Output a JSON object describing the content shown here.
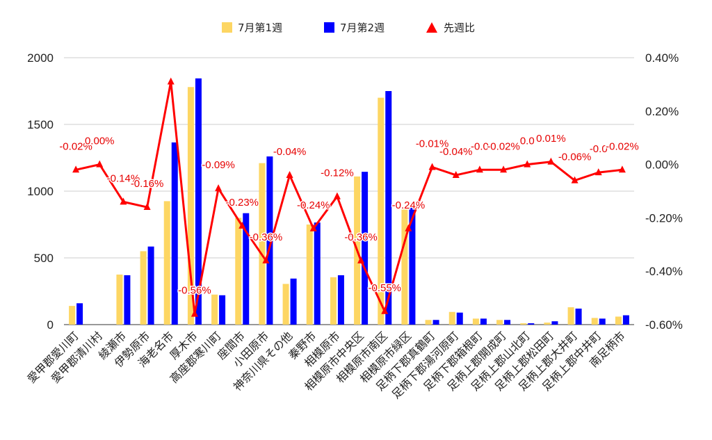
{
  "chart_data": {
    "type": "bar",
    "categories": [
      "愛甲郡愛川町",
      "愛甲郡清川村",
      "綾瀬市",
      "伊勢原市",
      "海老名市",
      "厚木市",
      "高座郡寒川町",
      "座間市",
      "小田原市",
      "神奈川県その他",
      "秦野市",
      "相模原市",
      "相模原市中央区",
      "相模原市南区",
      "相模原市緑区",
      "足柄下郡真鶴町",
      "足柄下郡湯河原町",
      "足柄下郡箱根町",
      "足柄上郡開成町",
      "足柄上郡山北町",
      "足柄上郡松田町",
      "足柄上郡大井町",
      "足柄上郡中井町",
      "南足柄市"
    ],
    "series": [
      {
        "name": "7月第1週",
        "axis": "left",
        "color": "#fdd663",
        "values": [
          140,
          0,
          375,
          550,
          925,
          1780,
          225,
          800,
          1210,
          305,
          750,
          355,
          1110,
          1700,
          870,
          35,
          95,
          45,
          35,
          10,
          15,
          130,
          50,
          60
        ]
      },
      {
        "name": "7月第2週",
        "axis": "left",
        "color": "#0000ff",
        "values": [
          160,
          0,
          370,
          585,
          1365,
          1845,
          220,
          835,
          1260,
          345,
          765,
          370,
          1145,
          1750,
          895,
          35,
          90,
          45,
          35,
          10,
          25,
          120,
          45,
          70
        ]
      },
      {
        "name": "先週比",
        "axis": "right",
        "type": "line",
        "marker": "triangle",
        "color": "#ff0000",
        "values": [
          -0.0002,
          0.0,
          -0.0014,
          -0.0016,
          0.0031,
          -0.0056,
          -0.0009,
          -0.0023,
          -0.0036,
          -0.0004,
          -0.0024,
          -0.0012,
          -0.0036,
          -0.0055,
          -0.0024,
          -0.0001,
          -0.0004,
          -0.0002,
          -0.0002,
          0.0,
          0.0001,
          -0.0006,
          -0.0003,
          -0.0002
        ],
        "labels": [
          "-0.02%",
          "0.00%",
          "-0.14%",
          "-0.16%",
          "",
          "-0.56%",
          "-0.09%",
          "-0.23%",
          "-0.36%",
          "-0.04%",
          "-0.24%",
          "-0.12%",
          "-0.36%",
          "-0.55%",
          "-0.24%",
          "-0.01%",
          "-0.04%",
          "-0.0",
          "-0.02%",
          "0.0",
          "0.01%",
          "-0.06%",
          "-0.0",
          "-0.02%"
        ]
      }
    ],
    "left_axis": {
      "ylim": [
        0,
        2000
      ],
      "ticks": [
        "0",
        "500",
        "1000",
        "1500",
        "2000"
      ]
    },
    "right_axis": {
      "ylim": [
        -0.006,
        0.004
      ],
      "ticks": [
        "-0.60%",
        "-0.40%",
        "-0.20%",
        "0.00%",
        "0.20%",
        "0.40%"
      ]
    },
    "grid": true,
    "legend_position": "top-center"
  }
}
